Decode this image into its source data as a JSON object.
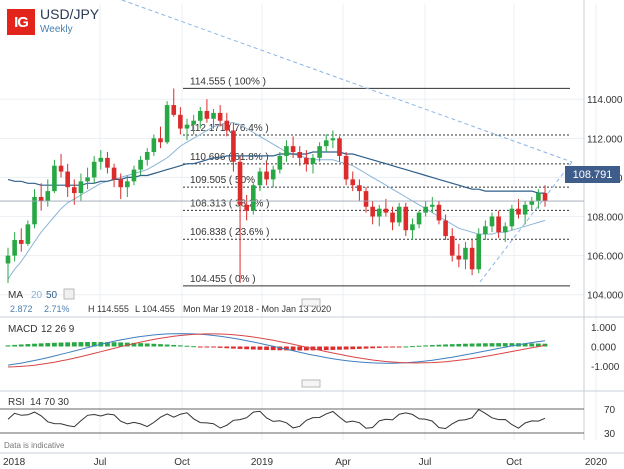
{
  "header": {
    "logo": "IG",
    "title": "USD/JPY",
    "subtitle": "Weekly"
  },
  "price_label": "108.791",
  "ma_row": {
    "label": "MA",
    "p1": "20",
    "p2": "50",
    "v1": "2.872",
    "v2": "2.71%",
    "high": "H 114.555",
    "low": "L 104.455",
    "range": "Mon Mar 19 2018 - Mon Jan 13 2020"
  },
  "macd_label": {
    "name": "MACD",
    "params": "12  26  9"
  },
  "rsi_label": {
    "name": "RSI",
    "params": "14  70  30"
  },
  "footer_note": "Data is indicative",
  "colors": {
    "up": "#27a844",
    "down": "#dc2b2b",
    "ma20": "#8ab4d8",
    "ma50": "#2f5f8a",
    "macd_line": "#3f7fc0",
    "signal_line": "#d94545",
    "trend": "#8ab4e8"
  },
  "chart_data": {
    "type": "candlestick",
    "title": "USD/JPY",
    "subtitle": "Weekly",
    "x_ticks": [
      "2018",
      "Jul",
      "Oct",
      "2019",
      "Apr",
      "Jul",
      "Oct",
      "2020"
    ],
    "y_ticks": [
      "114.000",
      "112.000",
      "110.000",
      "108.000",
      "106.000",
      "104.000"
    ],
    "ylim": [
      103.5,
      115.3
    ],
    "last_price": 108.791,
    "fibonacci": [
      {
        "label": "114.555 ( 100% )",
        "value": 114.555
      },
      {
        "label": "112.171 ( 76.4% )",
        "value": 112.171
      },
      {
        "label": "110.696 ( 61.8% )",
        "value": 110.696
      },
      {
        "label": "109.505 ( 50% )",
        "value": 109.505
      },
      {
        "label": "108.313 ( 38.2% )",
        "value": 108.313
      },
      {
        "label": "106.838 ( 23.6% )",
        "value": 106.838
      },
      {
        "label": "104.455 ( 0% )",
        "value": 104.455
      }
    ],
    "candles": [
      [
        105.6,
        106.4,
        104.6,
        106.0
      ],
      [
        106.0,
        107.2,
        105.7,
        106.8
      ],
      [
        106.8,
        107.4,
        106.2,
        106.6
      ],
      [
        106.6,
        107.8,
        106.5,
        107.6
      ],
      [
        107.6,
        109.4,
        107.4,
        109.0
      ],
      [
        109.0,
        109.7,
        108.3,
        108.8
      ],
      [
        108.8,
        109.9,
        108.5,
        109.3
      ],
      [
        109.3,
        110.9,
        109.2,
        110.6
      ],
      [
        110.6,
        111.2,
        110.0,
        110.3
      ],
      [
        110.3,
        110.7,
        109.0,
        109.5
      ],
      [
        109.5,
        109.9,
        108.6,
        109.2
      ],
      [
        109.2,
        110.2,
        108.8,
        109.8
      ],
      [
        109.8,
        110.5,
        109.4,
        110.0
      ],
      [
        110.0,
        111.1,
        109.7,
        110.8
      ],
      [
        110.8,
        111.4,
        110.4,
        111.0
      ],
      [
        111.0,
        111.3,
        110.2,
        110.5
      ],
      [
        110.5,
        110.7,
        109.5,
        109.9
      ],
      [
        109.9,
        110.2,
        108.9,
        109.5
      ],
      [
        109.5,
        110.1,
        109.0,
        109.8
      ],
      [
        109.8,
        110.6,
        109.6,
        110.4
      ],
      [
        110.4,
        111.1,
        110.1,
        110.9
      ],
      [
        110.9,
        111.5,
        110.6,
        111.3
      ],
      [
        111.3,
        112.2,
        111.1,
        112.0
      ],
      [
        112.0,
        112.6,
        111.5,
        111.8
      ],
      [
        111.8,
        113.9,
        111.7,
        113.7
      ],
      [
        113.7,
        114.55,
        113.1,
        113.2
      ],
      [
        113.2,
        113.6,
        112.2,
        112.5
      ],
      [
        112.5,
        113.0,
        111.9,
        112.7
      ],
      [
        112.7,
        113.2,
        112.2,
        112.9
      ],
      [
        112.9,
        113.6,
        112.5,
        113.4
      ],
      [
        113.4,
        114.0,
        112.8,
        113.0
      ],
      [
        113.0,
        113.5,
        112.5,
        113.3
      ],
      [
        113.3,
        113.7,
        112.6,
        112.9
      ],
      [
        112.9,
        113.3,
        112.1,
        112.4
      ],
      [
        112.4,
        112.8,
        110.3,
        110.8
      ],
      [
        110.8,
        111.1,
        104.6,
        108.6
      ],
      [
        108.6,
        109.1,
        107.8,
        108.3
      ],
      [
        108.3,
        109.7,
        108.1,
        109.6
      ],
      [
        109.6,
        110.5,
        109.3,
        110.3
      ],
      [
        110.3,
        110.8,
        109.6,
        109.9
      ],
      [
        109.9,
        110.6,
        109.5,
        110.4
      ],
      [
        110.4,
        111.3,
        110.2,
        111.1
      ],
      [
        111.1,
        111.9,
        110.8,
        111.6
      ],
      [
        111.6,
        112.1,
        111.0,
        111.3
      ],
      [
        111.3,
        111.6,
        110.6,
        111.0
      ],
      [
        111.0,
        111.4,
        110.3,
        110.7
      ],
      [
        110.7,
        111.2,
        110.2,
        111.0
      ],
      [
        111.0,
        111.8,
        110.8,
        111.6
      ],
      [
        111.6,
        112.2,
        111.3,
        111.9
      ],
      [
        111.9,
        112.4,
        111.5,
        112.0
      ],
      [
        112.0,
        112.1,
        110.8,
        111.1
      ],
      [
        111.1,
        111.3,
        109.6,
        109.9
      ],
      [
        109.9,
        110.3,
        109.3,
        109.6
      ],
      [
        109.6,
        109.9,
        108.8,
        109.3
      ],
      [
        109.3,
        109.5,
        108.2,
        108.5
      ],
      [
        108.5,
        108.8,
        107.6,
        108.0
      ],
      [
        108.0,
        108.6,
        107.5,
        108.4
      ],
      [
        108.4,
        108.9,
        108.0,
        108.2
      ],
      [
        108.2,
        108.5,
        107.3,
        107.7
      ],
      [
        107.7,
        108.7,
        107.5,
        108.5
      ],
      [
        108.5,
        108.7,
        107.0,
        107.3
      ],
      [
        107.3,
        107.9,
        106.8,
        107.6
      ],
      [
        107.6,
        108.3,
        107.4,
        108.2
      ],
      [
        108.2,
        108.8,
        108.0,
        108.5
      ],
      [
        108.5,
        109.0,
        108.2,
        108.6
      ],
      [
        108.6,
        108.8,
        107.6,
        107.8
      ],
      [
        107.8,
        108.1,
        106.8,
        107.0
      ],
      [
        107.0,
        107.4,
        105.7,
        106.0
      ],
      [
        106.0,
        106.6,
        105.4,
        105.8
      ],
      [
        105.8,
        106.7,
        105.3,
        106.4
      ],
      [
        106.4,
        106.8,
        105.0,
        105.3
      ],
      [
        105.3,
        107.4,
        105.1,
        107.1
      ],
      [
        107.1,
        107.8,
        106.8,
        107.5
      ],
      [
        107.5,
        108.2,
        107.2,
        108.0
      ],
      [
        108.0,
        108.3,
        106.9,
        107.2
      ],
      [
        107.2,
        107.7,
        106.7,
        107.5
      ],
      [
        107.5,
        108.6,
        107.3,
        108.4
      ],
      [
        108.4,
        108.9,
        107.9,
        108.1
      ],
      [
        108.1,
        108.8,
        107.6,
        108.6
      ],
      [
        108.6,
        109.0,
        108.3,
        108.8
      ],
      [
        108.8,
        109.4,
        108.4,
        109.2
      ],
      [
        109.2,
        109.6,
        108.5,
        108.8
      ]
    ],
    "ma20": [
      104.8,
      105.3,
      105.7,
      106.2,
      106.7,
      107.2,
      107.6,
      108.0,
      108.4,
      108.7,
      108.9,
      109.1,
      109.3,
      109.5,
      109.7,
      109.8,
      109.9,
      110.0,
      110.1,
      110.2,
      110.3,
      110.4,
      110.6,
      110.8,
      111.0,
      111.3,
      111.6,
      111.8,
      112.0,
      112.2,
      112.4,
      112.6,
      112.7,
      112.8,
      112.8,
      112.7,
      112.5,
      112.3,
      112.1,
      111.9,
      111.7,
      111.5,
      111.3,
      111.2,
      111.1,
      111.0,
      110.9,
      110.9,
      110.9,
      110.9,
      110.8,
      110.7,
      110.6,
      110.4,
      110.2,
      110.0,
      109.8,
      109.6,
      109.4,
      109.2,
      109.0,
      108.8,
      108.6,
      108.4,
      108.2,
      108.0,
      107.8,
      107.6,
      107.4,
      107.3,
      107.2,
      107.1,
      107.1,
      107.1,
      107.2,
      107.2,
      107.3,
      107.4,
      107.5,
      107.6,
      107.7,
      107.8
    ],
    "ma50": [
      109.9,
      109.8,
      109.8,
      109.7,
      109.7,
      109.6,
      109.6,
      109.6,
      109.6,
      109.6,
      109.6,
      109.6,
      109.7,
      109.7,
      109.8,
      109.8,
      109.9,
      109.9,
      110.0,
      110.0,
      110.1,
      110.1,
      110.2,
      110.3,
      110.4,
      110.5,
      110.6,
      110.7,
      110.7,
      110.8,
      110.9,
      111.0,
      111.0,
      111.1,
      111.1,
      111.1,
      111.1,
      111.1,
      111.1,
      111.1,
      111.1,
      111.2,
      111.2,
      111.2,
      111.2,
      111.2,
      111.3,
      111.3,
      111.3,
      111.3,
      111.3,
      111.2,
      111.2,
      111.1,
      111.0,
      110.9,
      110.8,
      110.7,
      110.6,
      110.5,
      110.4,
      110.3,
      110.2,
      110.1,
      110.0,
      109.9,
      109.8,
      109.7,
      109.6,
      109.5,
      109.4,
      109.4,
      109.3,
      109.3,
      109.3,
      109.3,
      109.3,
      109.3,
      109.3,
      109.3,
      109.2,
      109.2
    ],
    "macd_ticks": [
      "1.000",
      "0.000",
      "-1.000"
    ],
    "rsi_ticks": [
      "70",
      "30"
    ]
  }
}
